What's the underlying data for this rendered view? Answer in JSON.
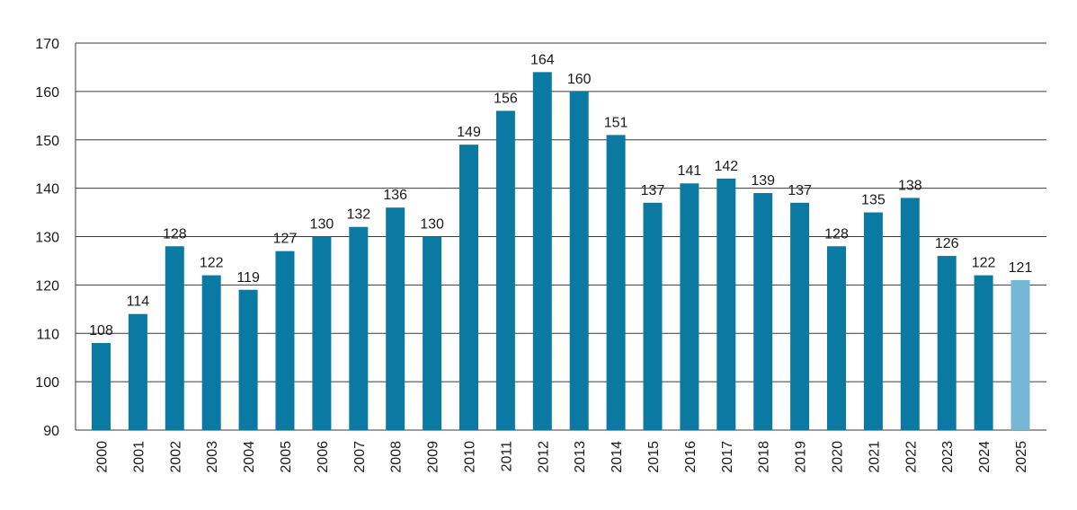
{
  "chart_data": {
    "type": "bar",
    "title": "",
    "xlabel": "",
    "ylabel": "",
    "ylim": [
      90,
      170
    ],
    "yticks": [
      90,
      100,
      110,
      120,
      130,
      140,
      150,
      160,
      170
    ],
    "grid": true,
    "legend": "none",
    "colors": {
      "bar": "#0a7aa3",
      "highlight": "#74b8d6",
      "grid": "#3a3a3a",
      "text": "#1a1a1a"
    },
    "highlighted_categories": [
      "2025"
    ],
    "categories": [
      "2000",
      "2001",
      "2002",
      "2003",
      "2004",
      "2005",
      "2006",
      "2007",
      "2008",
      "2009",
      "2010",
      "2011",
      "2012",
      "2013",
      "2014",
      "2015",
      "2016",
      "2017",
      "2018",
      "2019",
      "2020",
      "2021",
      "2022",
      "2023",
      "2024",
      "2025"
    ],
    "values": [
      108,
      114,
      128,
      122,
      119,
      127,
      130,
      132,
      136,
      130,
      149,
      156,
      164,
      160,
      151,
      137,
      141,
      142,
      139,
      137,
      128,
      135,
      138,
      126,
      122,
      121
    ]
  }
}
